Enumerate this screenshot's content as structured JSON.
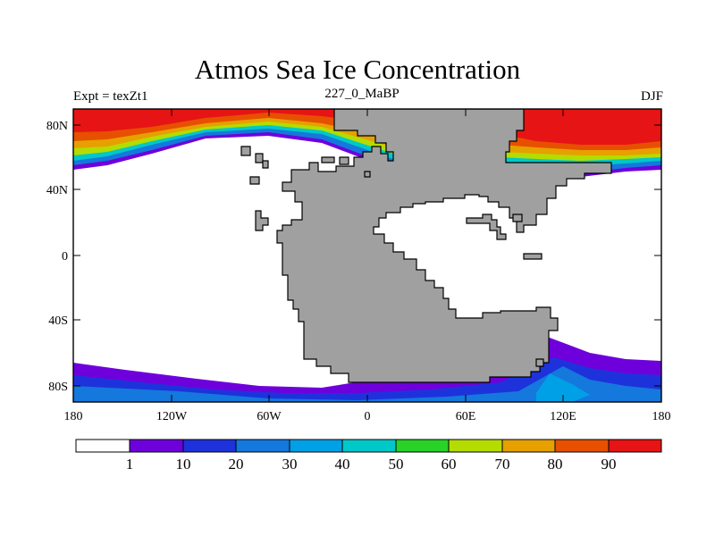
{
  "map": {
    "title": "Atmos Sea Ice Concentration",
    "left_label": "Expt = texZt1",
    "center_label": "227_0_MaBP",
    "right_label": "DJF"
  },
  "axes": {
    "lat_ticks": [
      "80N",
      "40N",
      "0",
      "40S",
      "80S"
    ],
    "lon_ticks": [
      "180",
      "120W",
      "60W",
      "0",
      "60E",
      "120E",
      "180"
    ]
  },
  "colorbar": {
    "labels": [
      "1",
      "10",
      "20",
      "30",
      "40",
      "50",
      "60",
      "70",
      "80",
      "90"
    ],
    "colors": [
      "#ffffff",
      "#6e00dc",
      "#1e32dc",
      "#1478dc",
      "#00a0e6",
      "#00c8c8",
      "#28d228",
      "#b4dc00",
      "#e6a000",
      "#e65000",
      "#e61414"
    ]
  }
}
